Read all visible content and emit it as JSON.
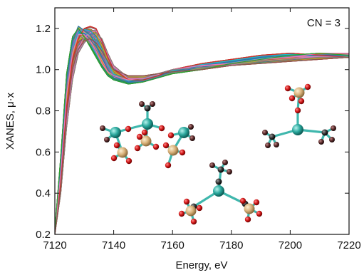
{
  "chart_data": {
    "type": "line",
    "xlabel": "Energy, eV",
    "ylabel": "XANES, μ·x",
    "xlim": [
      7120,
      7220
    ],
    "ylim": [
      0.2,
      1.3
    ],
    "x_ticks": [
      7120,
      7140,
      7160,
      7180,
      7200,
      7220
    ],
    "y_ticks": [
      0.2,
      0.4,
      0.6,
      0.8,
      1.0,
      1.2
    ],
    "x_tick_labels": [
      "7120",
      "7140",
      "7160",
      "7180",
      "7200",
      "7220"
    ],
    "y_tick_labels": [
      "0.2",
      "0.4",
      "0.6",
      "0.8",
      "1.0",
      "1.2"
    ],
    "annotation": "CN = 3",
    "grid": false,
    "legend": "none",
    "series_count_description": "many overlapping spectra",
    "representative_series": [
      {
        "x": [
          7120,
          7122,
          7124,
          7126,
          7128,
          7130,
          7132,
          7134,
          7136,
          7138,
          7140,
          7145,
          7150,
          7155,
          7160,
          7170,
          7180,
          7190,
          7200,
          7210,
          7220
        ],
        "y": [
          0.22,
          0.55,
          0.95,
          1.14,
          1.21,
          1.19,
          1.17,
          1.12,
          1.06,
          1.0,
          0.96,
          0.94,
          0.95,
          0.97,
          0.99,
          1.02,
          1.04,
          1.06,
          1.07,
          1.07,
          1.07
        ]
      },
      {
        "x": [
          7120,
          7122,
          7124,
          7126,
          7128,
          7130,
          7132,
          7134,
          7136,
          7138,
          7140,
          7145,
          7150,
          7155,
          7160,
          7170,
          7180,
          7190,
          7200,
          7210,
          7220
        ],
        "y": [
          0.2,
          0.45,
          0.82,
          1.05,
          1.15,
          1.2,
          1.21,
          1.2,
          1.14,
          1.06,
          1.0,
          0.95,
          0.95,
          0.97,
          1.0,
          1.03,
          1.05,
          1.07,
          1.08,
          1.07,
          1.06
        ]
      },
      {
        "x": [
          7120,
          7122,
          7124,
          7126,
          7128,
          7130,
          7132,
          7134,
          7136,
          7138,
          7140,
          7145,
          7150,
          7155,
          7160,
          7170,
          7180,
          7190,
          7200,
          7210,
          7220
        ],
        "y": [
          0.21,
          0.5,
          0.88,
          1.08,
          1.17,
          1.17,
          1.14,
          1.09,
          1.03,
          0.99,
          0.97,
          0.95,
          0.96,
          0.98,
          1.0,
          1.02,
          1.03,
          1.05,
          1.06,
          1.08,
          1.08
        ]
      },
      {
        "x": [
          7120,
          7122,
          7124,
          7126,
          7128,
          7130,
          7132,
          7134,
          7136,
          7138,
          7140,
          7145,
          7150,
          7155,
          7160,
          7170,
          7180,
          7190,
          7200,
          7210,
          7220
        ],
        "y": [
          0.2,
          0.4,
          0.72,
          0.95,
          1.08,
          1.13,
          1.16,
          1.18,
          1.15,
          1.08,
          1.02,
          0.96,
          0.96,
          0.98,
          1.0,
          1.01,
          1.02,
          1.04,
          1.05,
          1.06,
          1.06
        ]
      },
      {
        "x": [
          7120,
          7122,
          7124,
          7126,
          7128,
          7130,
          7132,
          7134,
          7136,
          7138,
          7140,
          7145,
          7150,
          7155,
          7160,
          7170,
          7180,
          7190,
          7200,
          7210,
          7220
        ],
        "y": [
          0.22,
          0.58,
          0.98,
          1.16,
          1.2,
          1.16,
          1.11,
          1.06,
          1.01,
          0.97,
          0.95,
          0.93,
          0.94,
          0.96,
          0.98,
          1.0,
          1.03,
          1.05,
          1.07,
          1.08,
          1.07
        ]
      },
      {
        "x": [
          7120,
          7122,
          7124,
          7126,
          7128,
          7130,
          7132,
          7134,
          7136,
          7138,
          7140,
          7145,
          7150,
          7155,
          7160,
          7170,
          7180,
          7190,
          7200,
          7210,
          7220
        ],
        "y": [
          0.2,
          0.42,
          0.78,
          1.0,
          1.1,
          1.14,
          1.15,
          1.13,
          1.09,
          1.04,
          1.0,
          0.97,
          0.97,
          0.98,
          0.99,
          1.0,
          1.02,
          1.03,
          1.04,
          1.05,
          1.06
        ]
      }
    ],
    "colors": [
      "#1f77b4",
      "#ff7f0e",
      "#2ca02c",
      "#d62728",
      "#9467bd",
      "#8c564b",
      "#e377c2",
      "#17becf",
      "#bcbd22",
      "#7f7f7f"
    ],
    "inset_illustrations": [
      "molecular-structure-left",
      "molecular-structure-bottom",
      "molecular-structure-right"
    ]
  }
}
